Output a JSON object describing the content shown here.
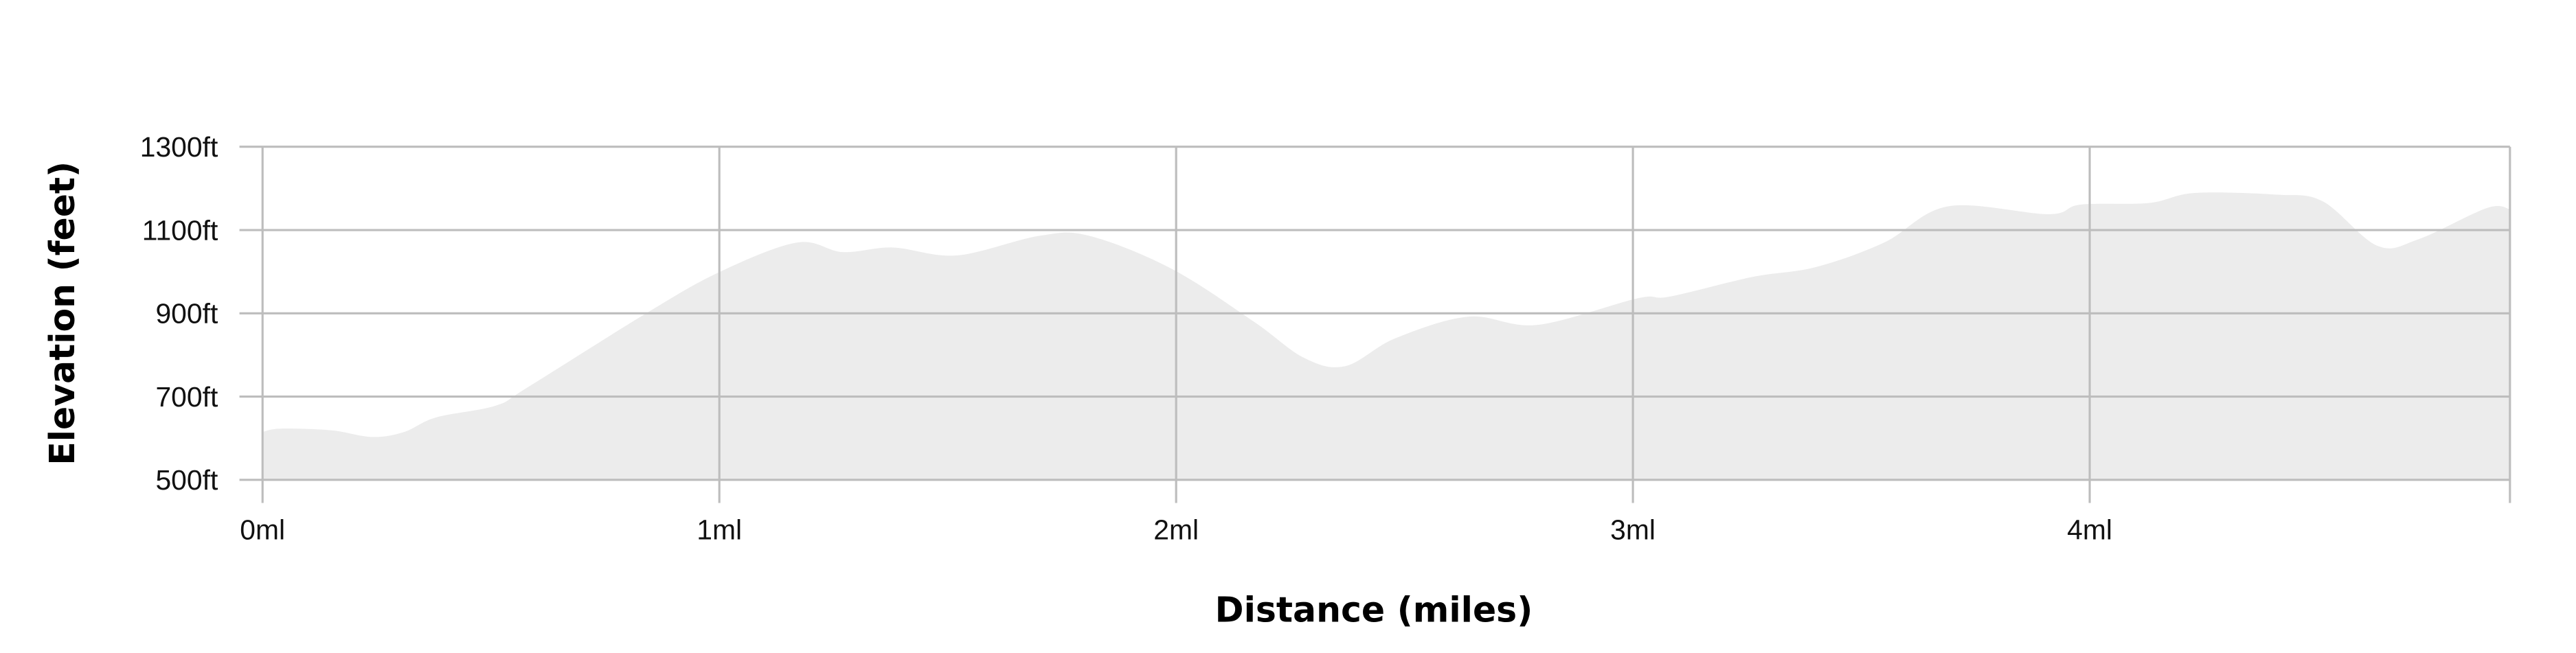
{
  "chart_data": {
    "type": "area",
    "title": "",
    "xlabel": "Distance (miles)",
    "ylabel": "Elevation (feet)",
    "xlim": [
      0,
      4.92
    ],
    "ylim": [
      500,
      1300
    ],
    "grid": true,
    "fill_color": "#ececec",
    "grid_color": "#bdbdbd",
    "x_ticks": [
      {
        "value": 0,
        "label": "0ml"
      },
      {
        "value": 1,
        "label": "1ml"
      },
      {
        "value": 2,
        "label": "2ml"
      },
      {
        "value": 3,
        "label": "3ml"
      },
      {
        "value": 4,
        "label": "4ml"
      }
    ],
    "y_ticks": [
      {
        "value": 500,
        "label": "500ft"
      },
      {
        "value": 700,
        "label": "700ft"
      },
      {
        "value": 900,
        "label": "900ft"
      },
      {
        "value": 1100,
        "label": "1100ft"
      },
      {
        "value": 1300,
        "label": "1300ft"
      }
    ],
    "x": [
      0,
      0.04,
      0.15,
      0.24,
      0.31,
      0.38,
      0.51,
      0.58,
      0.84,
      1.0,
      1.17,
      1.27,
      1.38,
      1.52,
      1.7,
      1.81,
      1.99,
      2.17,
      2.28,
      2.37,
      2.48,
      2.64,
      2.79,
      3.01,
      3.08,
      3.26,
      3.4,
      3.55,
      3.69,
      3.91,
      3.98,
      4.13,
      4.23,
      4.41,
      4.51,
      4.63,
      4.72,
      4.87,
      4.92
    ],
    "y": [
      615,
      623,
      619,
      603,
      615,
      650,
      678,
      722,
      900,
      999,
      1070,
      1047,
      1058,
      1039,
      1086,
      1086,
      1007,
      880,
      793,
      773,
      840,
      892,
      872,
      936,
      940,
      987,
      1011,
      1070,
      1157,
      1138,
      1161,
      1165,
      1189,
      1185,
      1169,
      1062,
      1078,
      1153,
      1150
    ]
  }
}
